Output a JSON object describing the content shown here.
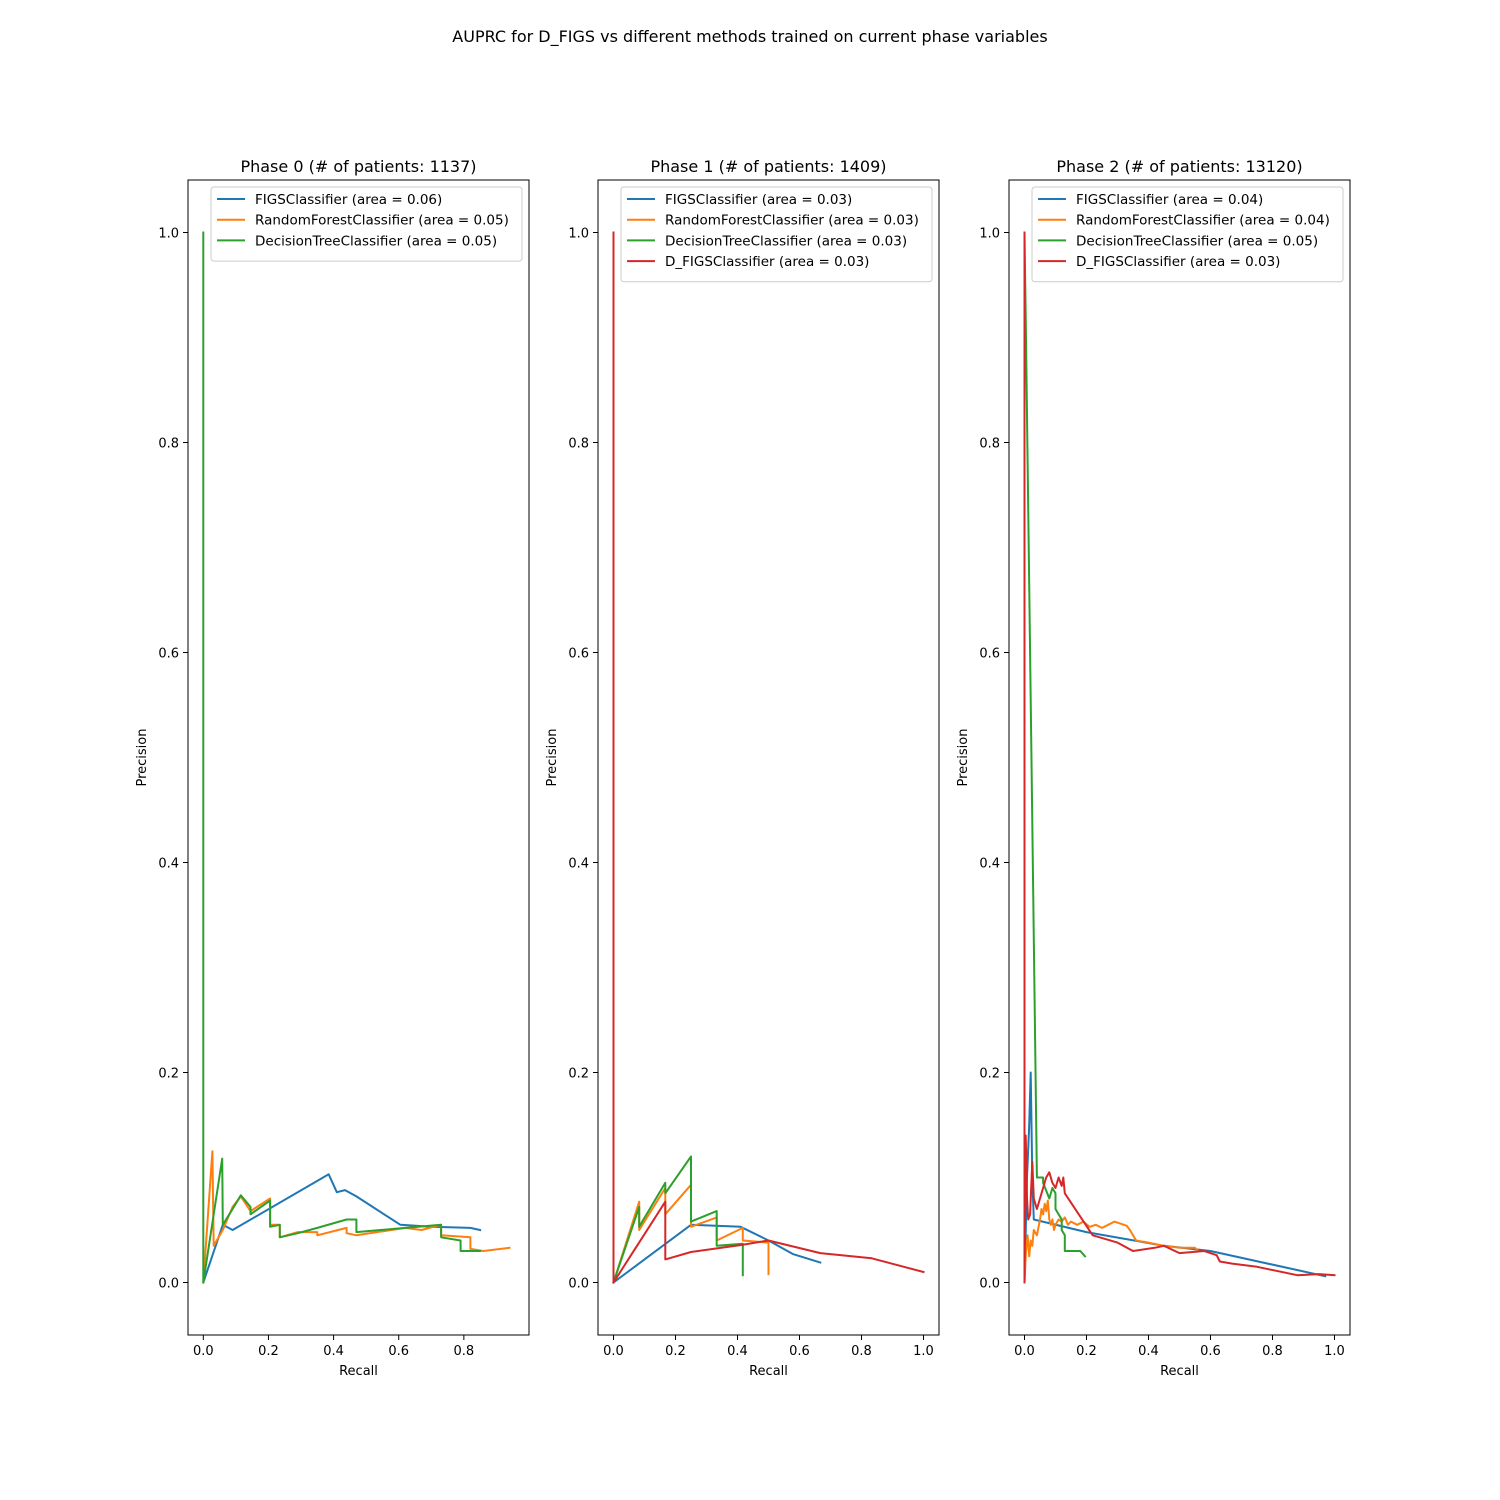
{
  "figure": {
    "suptitle": "AUPRC for D_FIGS vs different methods trained on current phase variables"
  },
  "colors": {
    "FIGSClassifier": "#1f77b4",
    "RandomForestClassifier": "#ff7f0e",
    "DecisionTreeClassifier": "#2ca02c",
    "D_FIGSClassifier": "#d62728"
  },
  "chart_data": [
    {
      "type": "line",
      "title": "Phase 0 (# of patients: 1137)",
      "xlabel": "Recall",
      "ylabel": "Precision",
      "xlim": [
        -0.047,
        1.0
      ],
      "ylim": [
        -0.05,
        1.05
      ],
      "xticks": [
        0.0,
        0.2,
        0.4,
        0.6,
        0.8
      ],
      "xtick_labels": [
        "0.0",
        "0.2",
        "0.4",
        "0.6",
        "0.8"
      ],
      "yticks": [
        0.0,
        0.2,
        0.4,
        0.6,
        0.8,
        1.0
      ],
      "ytick_labels": [
        "0.0",
        "0.2",
        "0.4",
        "0.6",
        "0.8",
        "1.0"
      ],
      "legend_location": "upper right",
      "series": [
        {
          "name": "FIGSClassifier",
          "legend": "FIGSClassifier (area = 0.06)",
          "color_key": "FIGSClassifier",
          "points": [
            [
              0.0,
              0.0
            ],
            [
              0.06,
              0.055
            ],
            [
              0.09,
              0.05
            ],
            [
              0.385,
              0.103
            ],
            [
              0.41,
              0.086
            ],
            [
              0.435,
              0.088
            ],
            [
              0.47,
              0.082
            ],
            [
              0.605,
              0.055
            ],
            [
              0.7,
              0.053
            ],
            [
              0.82,
              0.052
            ],
            [
              0.85,
              0.05
            ]
          ]
        },
        {
          "name": "RandomForestClassifier",
          "legend": "RandomForestClassifier (area = 0.05)",
          "color_key": "RandomForestClassifier",
          "points": [
            [
              0.0,
              0.0
            ],
            [
              0.028,
              0.125
            ],
            [
              0.032,
              0.035
            ],
            [
              0.06,
              0.05
            ],
            [
              0.09,
              0.072
            ],
            [
              0.115,
              0.082
            ],
            [
              0.145,
              0.068
            ],
            [
              0.205,
              0.08
            ],
            [
              0.205,
              0.055
            ],
            [
              0.235,
              0.055
            ],
            [
              0.235,
              0.043
            ],
            [
              0.29,
              0.048
            ],
            [
              0.35,
              0.048
            ],
            [
              0.35,
              0.045
            ],
            [
              0.44,
              0.052
            ],
            [
              0.44,
              0.047
            ],
            [
              0.47,
              0.045
            ],
            [
              0.62,
              0.052
            ],
            [
              0.67,
              0.05
            ],
            [
              0.73,
              0.055
            ],
            [
              0.73,
              0.045
            ],
            [
              0.82,
              0.043
            ],
            [
              0.82,
              0.032
            ],
            [
              0.86,
              0.03
            ],
            [
              0.94,
              0.033
            ]
          ]
        },
        {
          "name": "DecisionTreeClassifier",
          "legend": "DecisionTreeClassifier (area = 0.05)",
          "color_key": "DecisionTreeClassifier",
          "points": [
            [
              0.0,
              1.0
            ],
            [
              0.0,
              0.0
            ],
            [
              0.058,
              0.118
            ],
            [
              0.06,
              0.055
            ],
            [
              0.09,
              0.07
            ],
            [
              0.115,
              0.083
            ],
            [
              0.145,
              0.072
            ],
            [
              0.145,
              0.065
            ],
            [
              0.205,
              0.078
            ],
            [
              0.205,
              0.053
            ],
            [
              0.235,
              0.055
            ],
            [
              0.235,
              0.043
            ],
            [
              0.29,
              0.047
            ],
            [
              0.35,
              0.052
            ],
            [
              0.44,
              0.06
            ],
            [
              0.47,
              0.06
            ],
            [
              0.47,
              0.048
            ],
            [
              0.73,
              0.055
            ],
            [
              0.73,
              0.043
            ],
            [
              0.79,
              0.04
            ],
            [
              0.79,
              0.03
            ],
            [
              0.85,
              0.03
            ]
          ]
        }
      ]
    },
    {
      "type": "line",
      "title": "Phase 1 (# of patients: 1409)",
      "xlabel": "Recall",
      "ylabel": "Precision",
      "xlim": [
        -0.05,
        1.05
      ],
      "ylim": [
        -0.05,
        1.05
      ],
      "xticks": [
        0.0,
        0.2,
        0.4,
        0.6,
        0.8,
        1.0
      ],
      "xtick_labels": [
        "0.0",
        "0.2",
        "0.4",
        "0.6",
        "0.8",
        "1.0"
      ],
      "yticks": [
        0.0,
        0.2,
        0.4,
        0.6,
        0.8,
        1.0
      ],
      "ytick_labels": [
        "0.0",
        "0.2",
        "0.4",
        "0.6",
        "0.8",
        "1.0"
      ],
      "legend_location": "upper right",
      "series": [
        {
          "name": "FIGSClassifier",
          "legend": "FIGSClassifier (area = 0.03)",
          "color_key": "FIGSClassifier",
          "points": [
            [
              0.0,
              0.0
            ],
            [
              0.25,
              0.055
            ],
            [
              0.41,
              0.053
            ],
            [
              0.5,
              0.04
            ],
            [
              0.58,
              0.027
            ],
            [
              0.667,
              0.019
            ]
          ]
        },
        {
          "name": "RandomForestClassifier",
          "legend": "RandomForestClassifier (area = 0.03)",
          "color_key": "RandomForestClassifier",
          "points": [
            [
              0.0,
              0.0
            ],
            [
              0.083,
              0.077
            ],
            [
              0.083,
              0.05
            ],
            [
              0.167,
              0.09
            ],
            [
              0.167,
              0.065
            ],
            [
              0.25,
              0.093
            ],
            [
              0.25,
              0.053
            ],
            [
              0.333,
              0.062
            ],
            [
              0.333,
              0.04
            ],
            [
              0.417,
              0.052
            ],
            [
              0.417,
              0.04
            ],
            [
              0.5,
              0.038
            ],
            [
              0.5,
              0.008
            ]
          ]
        },
        {
          "name": "DecisionTreeClassifier",
          "legend": "DecisionTreeClassifier (area = 0.03)",
          "color_key": "DecisionTreeClassifier",
          "points": [
            [
              0.0,
              0.0
            ],
            [
              0.083,
              0.072
            ],
            [
              0.083,
              0.053
            ],
            [
              0.167,
              0.095
            ],
            [
              0.167,
              0.085
            ],
            [
              0.25,
              0.12
            ],
            [
              0.25,
              0.058
            ],
            [
              0.333,
              0.068
            ],
            [
              0.333,
              0.035
            ],
            [
              0.417,
              0.037
            ],
            [
              0.417,
              0.007
            ]
          ]
        },
        {
          "name": "D_FIGSClassifier",
          "legend": "D_FIGSClassifier (area = 0.03)",
          "color_key": "D_FIGSClassifier",
          "points": [
            [
              0.0,
              1.0
            ],
            [
              0.0,
              0.0
            ],
            [
              0.167,
              0.077
            ],
            [
              0.167,
              0.022
            ],
            [
              0.25,
              0.029
            ],
            [
              0.417,
              0.036
            ],
            [
              0.5,
              0.04
            ],
            [
              0.667,
              0.028
            ],
            [
              0.833,
              0.023
            ],
            [
              1.0,
              0.01
            ]
          ]
        }
      ]
    },
    {
      "type": "line",
      "title": "Phase 2 (# of patients: 13120)",
      "xlabel": "Recall",
      "ylabel": "Precision",
      "xlim": [
        -0.05,
        1.05
      ],
      "ylim": [
        -0.05,
        1.05
      ],
      "xticks": [
        0.0,
        0.2,
        0.4,
        0.6,
        0.8,
        1.0
      ],
      "xtick_labels": [
        "0.0",
        "0.2",
        "0.4",
        "0.6",
        "0.8",
        "1.0"
      ],
      "yticks": [
        0.0,
        0.2,
        0.4,
        0.6,
        0.8,
        1.0
      ],
      "ytick_labels": [
        "0.0",
        "0.2",
        "0.4",
        "0.6",
        "0.8",
        "1.0"
      ],
      "legend_location": "upper right",
      "series": [
        {
          "name": "FIGSClassifier",
          "legend": "FIGSClassifier (area = 0.04)",
          "color_key": "FIGSClassifier",
          "points": [
            [
              0.0,
              0.0
            ],
            [
              0.008,
              0.1
            ],
            [
              0.015,
              0.15
            ],
            [
              0.02,
              0.2
            ],
            [
              0.025,
              0.1
            ],
            [
              0.03,
              0.06
            ],
            [
              0.2,
              0.048
            ],
            [
              0.45,
              0.035
            ],
            [
              0.6,
              0.03
            ],
            [
              0.97,
              0.006
            ]
          ]
        },
        {
          "name": "RandomForestClassifier",
          "legend": "RandomForestClassifier (area = 0.04)",
          "color_key": "RandomForestClassifier",
          "points": [
            [
              0.0,
              0.0
            ],
            [
              0.005,
              0.03
            ],
            [
              0.01,
              0.045
            ],
            [
              0.015,
              0.025
            ],
            [
              0.02,
              0.04
            ],
            [
              0.025,
              0.035
            ],
            [
              0.03,
              0.05
            ],
            [
              0.04,
              0.045
            ],
            [
              0.05,
              0.06
            ],
            [
              0.055,
              0.07
            ],
            [
              0.06,
              0.065
            ],
            [
              0.065,
              0.075
            ],
            [
              0.07,
              0.068
            ],
            [
              0.075,
              0.078
            ],
            [
              0.08,
              0.06
            ],
            [
              0.085,
              0.055
            ],
            [
              0.09,
              0.06
            ],
            [
              0.095,
              0.05
            ],
            [
              0.1,
              0.055
            ],
            [
              0.11,
              0.06
            ],
            [
              0.12,
              0.058
            ],
            [
              0.13,
              0.062
            ],
            [
              0.14,
              0.055
            ],
            [
              0.15,
              0.058
            ],
            [
              0.17,
              0.055
            ],
            [
              0.19,
              0.058
            ],
            [
              0.21,
              0.053
            ],
            [
              0.23,
              0.055
            ],
            [
              0.25,
              0.052
            ],
            [
              0.27,
              0.055
            ],
            [
              0.29,
              0.058
            ],
            [
              0.31,
              0.056
            ],
            [
              0.33,
              0.054
            ],
            [
              0.34,
              0.05
            ],
            [
              0.36,
              0.04
            ],
            [
              0.4,
              0.038
            ],
            [
              0.45,
              0.035
            ],
            [
              0.5,
              0.033
            ],
            [
              0.55,
              0.033
            ],
            [
              0.56,
              0.03
            ]
          ]
        },
        {
          "name": "DecisionTreeClassifier",
          "legend": "DecisionTreeClassifier (area = 0.05)",
          "color_key": "DecisionTreeClassifier",
          "points": [
            [
              0.0,
              1.0
            ],
            [
              0.005,
              0.9
            ],
            [
              0.04,
              0.1
            ],
            [
              0.06,
              0.1
            ],
            [
              0.06,
              0.095
            ],
            [
              0.08,
              0.08
            ],
            [
              0.09,
              0.09
            ],
            [
              0.1,
              0.085
            ],
            [
              0.1,
              0.07
            ],
            [
              0.11,
              0.065
            ],
            [
              0.12,
              0.06
            ],
            [
              0.12,
              0.05
            ],
            [
              0.13,
              0.045
            ],
            [
              0.13,
              0.03
            ],
            [
              0.18,
              0.03
            ],
            [
              0.195,
              0.025
            ]
          ]
        },
        {
          "name": "D_FIGSClassifier",
          "legend": "D_FIGSClassifier (area = 0.03)",
          "color_key": "D_FIGSClassifier",
          "points": [
            [
              0.0,
              1.0
            ],
            [
              0.0,
              0.0
            ],
            [
              0.004,
              0.14
            ],
            [
              0.008,
              0.08
            ],
            [
              0.012,
              0.06
            ],
            [
              0.018,
              0.065
            ],
            [
              0.025,
              0.115
            ],
            [
              0.03,
              0.08
            ],
            [
              0.04,
              0.07
            ],
            [
              0.05,
              0.08
            ],
            [
              0.06,
              0.09
            ],
            [
              0.07,
              0.1
            ],
            [
              0.08,
              0.105
            ],
            [
              0.09,
              0.095
            ],
            [
              0.1,
              0.09
            ],
            [
              0.11,
              0.1
            ],
            [
              0.12,
              0.092
            ],
            [
              0.125,
              0.1
            ],
            [
              0.13,
              0.085
            ],
            [
              0.22,
              0.045
            ],
            [
              0.3,
              0.038
            ],
            [
              0.35,
              0.03
            ],
            [
              0.42,
              0.033
            ],
            [
              0.45,
              0.035
            ],
            [
              0.5,
              0.028
            ],
            [
              0.58,
              0.03
            ],
            [
              0.62,
              0.026
            ],
            [
              0.63,
              0.02
            ],
            [
              0.67,
              0.018
            ],
            [
              0.75,
              0.015
            ],
            [
              0.88,
              0.007
            ],
            [
              0.95,
              0.008
            ],
            [
              1.0,
              0.007
            ]
          ]
        }
      ]
    }
  ]
}
